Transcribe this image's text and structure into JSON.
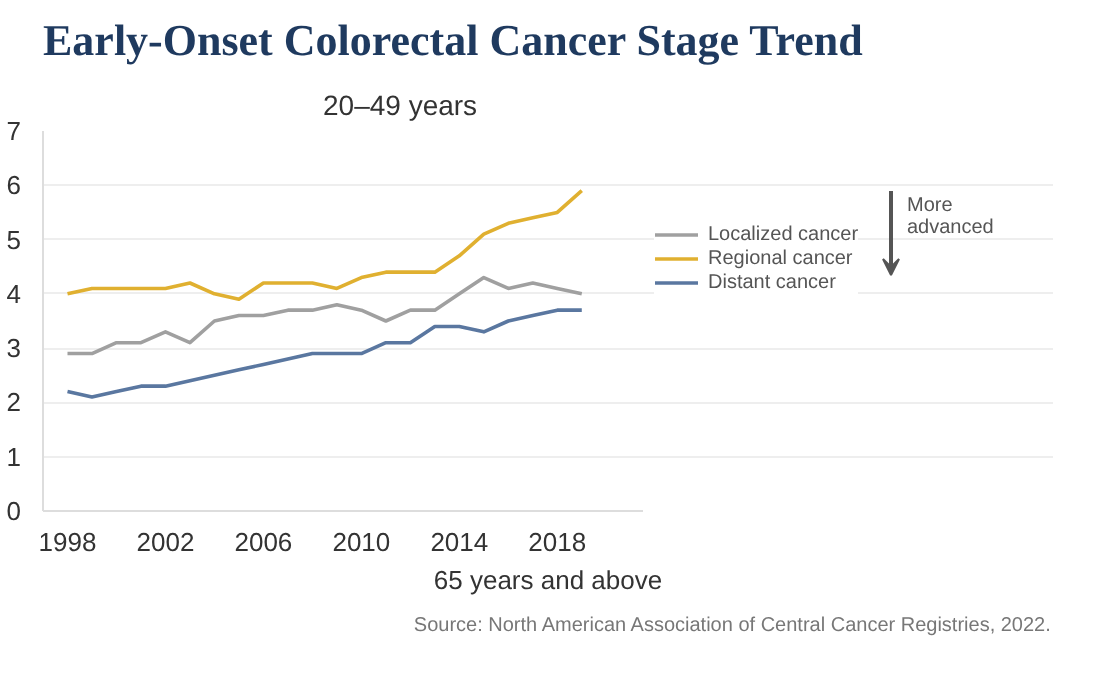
{
  "chart_data": {
    "type": "line",
    "title": "Early-Onset Colorectal Cancer Stage Trend",
    "subtitle": "20–49 years",
    "xlabel": "65 years and above",
    "x": [
      1998,
      1999,
      2000,
      2001,
      2002,
      2003,
      2004,
      2005,
      2006,
      2007,
      2008,
      2009,
      2010,
      2011,
      2012,
      2013,
      2014,
      2015,
      2016,
      2017,
      2018,
      2019
    ],
    "series": [
      {
        "name": "Localized cancer",
        "color": "#a0a0a0",
        "values": [
          2.9,
          2.9,
          3.1,
          3.1,
          3.3,
          3.1,
          3.5,
          3.6,
          3.6,
          3.7,
          3.7,
          3.8,
          3.7,
          3.5,
          3.7,
          3.7,
          4.0,
          4.3,
          4.1,
          4.2,
          4.1,
          4.0
        ]
      },
      {
        "name": "Regional cancer",
        "color": "#e0b030",
        "values": [
          4.0,
          4.1,
          4.1,
          4.1,
          4.1,
          4.2,
          4.0,
          3.9,
          4.2,
          4.2,
          4.2,
          4.1,
          4.3,
          4.4,
          4.4,
          4.4,
          4.7,
          5.1,
          5.3,
          5.4,
          5.5,
          5.9
        ]
      },
      {
        "name": "Distant cancer",
        "color": "#5a77a0",
        "values": [
          2.2,
          2.1,
          2.2,
          2.3,
          2.3,
          2.4,
          2.5,
          2.6,
          2.7,
          2.8,
          2.9,
          2.9,
          2.9,
          3.1,
          3.1,
          3.4,
          3.4,
          3.3,
          3.5,
          3.6,
          3.7,
          3.7
        ]
      }
    ],
    "xlim": [
      1997,
      2021.5
    ],
    "xticks": [
      1998,
      2002,
      2006,
      2010,
      2014,
      2018
    ],
    "ylim": [
      0,
      7
    ],
    "yticks": [
      0,
      1,
      2,
      3,
      4,
      5,
      6,
      7
    ],
    "grid": "y",
    "legend": "right",
    "marker": "none",
    "line_style": "solid",
    "annotations": [
      "More advanced",
      "Source: North American Association of Central Cancer Registries, 2022."
    ]
  }
}
